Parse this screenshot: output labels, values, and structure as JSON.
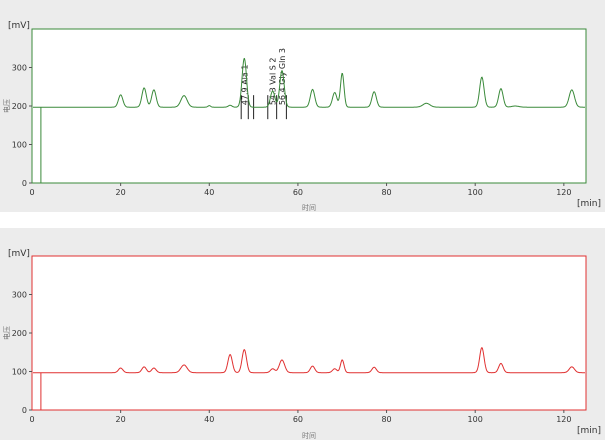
{
  "chart_data": [
    {
      "type": "line",
      "title": "",
      "xlabel": "时间",
      "ylabel": "电压",
      "x_unit": "[min]",
      "y_unit": "[mV]",
      "xlim": [
        0,
        125
      ],
      "ylim": [
        0,
        400
      ],
      "xticks": [
        0,
        20,
        40,
        60,
        80,
        100,
        120
      ],
      "yticks": [
        0,
        100,
        200,
        300
      ],
      "grid": false,
      "line_color": "#3a8a3a",
      "frame_color": "#3a8a3a",
      "baseline": 197,
      "baseline_dip": {
        "x": 2.0,
        "y": 0
      },
      "series": [
        {
          "peaks": [
            {
              "x": 20.0,
              "height": 32,
              "width": 0.5
            },
            {
              "x": 25.3,
              "height": 50,
              "width": 0.5
            },
            {
              "x": 27.5,
              "height": 45,
              "width": 0.5
            },
            {
              "x": 34.3,
              "height": 30,
              "width": 0.7
            },
            {
              "x": 40.0,
              "height": 4,
              "width": 0.3
            },
            {
              "x": 44.7,
              "height": 5,
              "width": 0.4
            },
            {
              "x": 47.9,
              "height": 127,
              "width": 0.5
            },
            {
              "x": 54.3,
              "height": 42,
              "width": 0.5
            },
            {
              "x": 56.4,
              "height": 95,
              "width": 0.5
            },
            {
              "x": 63.3,
              "height": 46,
              "width": 0.5
            },
            {
              "x": 68.3,
              "height": 38,
              "width": 0.5
            },
            {
              "x": 70.0,
              "height": 88,
              "width": 0.4
            },
            {
              "x": 77.2,
              "height": 40,
              "width": 0.5
            },
            {
              "x": 89.0,
              "height": 10,
              "width": 0.8
            },
            {
              "x": 101.5,
              "height": 78,
              "width": 0.5
            },
            {
              "x": 105.8,
              "height": 48,
              "width": 0.5
            },
            {
              "x": 109.0,
              "height": 3,
              "width": 0.8
            },
            {
              "x": 121.8,
              "height": 45,
              "width": 0.6
            }
          ]
        }
      ],
      "annotations": [
        {
          "x": 47.9,
          "text": "47.9 Ala  1"
        },
        {
          "x": 54.3,
          "text": "54.3 Val  S 2"
        },
        {
          "x": 56.4,
          "text": "56.4 Gly Gln  3"
        }
      ],
      "integration_marks": [
        {
          "x": 47.2
        },
        {
          "x": 48.8
        },
        {
          "x": 50.0
        },
        {
          "x": 53.2
        },
        {
          "x": 55.2
        },
        {
          "x": 57.4
        }
      ]
    },
    {
      "type": "line",
      "title": "",
      "xlabel": "时间",
      "ylabel": "电压",
      "x_unit": "[min]",
      "y_unit": "[mV]",
      "xlim": [
        0,
        125
      ],
      "ylim": [
        0,
        400
      ],
      "xticks": [
        0,
        20,
        40,
        60,
        80,
        100,
        120
      ],
      "yticks": [
        0,
        100,
        200,
        300
      ],
      "grid": false,
      "line_color": "#e03030",
      "frame_color": "#e03030",
      "baseline": 97,
      "baseline_dip": {
        "x": 2.0,
        "y": 0
      },
      "series": [
        {
          "peaks": [
            {
              "x": 20.0,
              "height": 12,
              "width": 0.5
            },
            {
              "x": 25.3,
              "height": 15,
              "width": 0.5
            },
            {
              "x": 27.5,
              "height": 12,
              "width": 0.5
            },
            {
              "x": 34.3,
              "height": 20,
              "width": 0.7
            },
            {
              "x": 44.7,
              "height": 47,
              "width": 0.5
            },
            {
              "x": 47.9,
              "height": 60,
              "width": 0.5
            },
            {
              "x": 54.3,
              "height": 10,
              "width": 0.5
            },
            {
              "x": 56.4,
              "height": 33,
              "width": 0.6
            },
            {
              "x": 63.3,
              "height": 17,
              "width": 0.5
            },
            {
              "x": 68.3,
              "height": 10,
              "width": 0.5
            },
            {
              "x": 70.0,
              "height": 33,
              "width": 0.4
            },
            {
              "x": 77.2,
              "height": 14,
              "width": 0.5
            },
            {
              "x": 101.5,
              "height": 65,
              "width": 0.5
            },
            {
              "x": 105.8,
              "height": 24,
              "width": 0.5
            },
            {
              "x": 121.8,
              "height": 15,
              "width": 0.6
            }
          ]
        }
      ],
      "annotations": [],
      "integration_marks": []
    }
  ]
}
